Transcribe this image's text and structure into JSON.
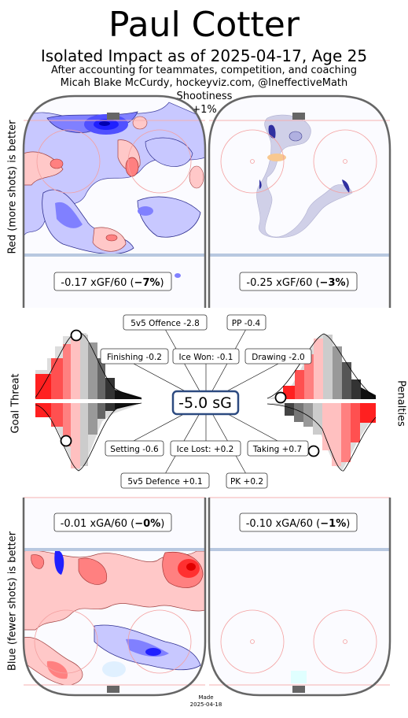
{
  "header": {
    "title": "Paul Cotter",
    "subtitle": "Isolated Impact as of 2025-04-17, Age 25",
    "credit_line1": "After accounting for teammates, competition, and coaching",
    "credit_line2": "Micah Blake McCurdy, hockeyviz.com, @IneffectiveMath",
    "shootiness_label": "Shootiness",
    "shootiness_value": "+1%"
  },
  "side_labels": {
    "left_top": "Red (more shots) is better",
    "left_mid": "Goal Threat",
    "left_bottom": "Blue (fewer shots) is better",
    "right_mid": "Penalties"
  },
  "rink_labels": {
    "offence_5v5": {
      "value": "-0.17 xGF/60 (",
      "pct": "−7%",
      "close": ")"
    },
    "offence_pp": {
      "value": "-0.25 xGF/60 (",
      "pct": "−3%",
      "close": ")"
    },
    "defence_5v5": {
      "value": "-0.01 xGA/60 (",
      "pct": "−0%",
      "close": ")"
    },
    "defence_pk": {
      "value": "-0.10 xGA/60 (",
      "pct": "−1%",
      "close": ")"
    }
  },
  "total": "-5.0 sG",
  "components": {
    "offence_5v5": "5v5 Offence -2.8",
    "pp": "PP -0.4",
    "finishing": "Finishing -0.2",
    "ice_won": "Ice Won: -0.1",
    "drawing": "Drawing -2.0",
    "setting": "Setting -0.6",
    "ice_lost": "Ice Lost: +0.2",
    "taking": "Taking +0.7",
    "defence_5v5": "5v5 Defence +0.1",
    "pk": "PK +0.2"
  },
  "footer": {
    "made_label": "Made",
    "made_date": "2025-04-18"
  },
  "colors": {
    "red_strong": "#ff1a1a",
    "red_mid": "#ff8080",
    "red_light": "#ffc8c8",
    "blue_strong": "#2020ff",
    "blue_mid": "#8080ff",
    "blue_light": "#c8c8ff",
    "grey_dark": "#222222",
    "grey_mid": "#777777",
    "grey_light": "#cccccc",
    "total_border": "#2c4a80",
    "board": "#666666"
  },
  "chart_data": {
    "type": "distribution",
    "title": "Paul Cotter",
    "total_sG": -5.0,
    "shootiness_pct": 1,
    "components": [
      {
        "name": "5v5 Offence",
        "value": -2.8
      },
      {
        "name": "PP",
        "value": -0.4
      },
      {
        "name": "Finishing",
        "value": -0.2
      },
      {
        "name": "Ice Won",
        "value": -0.1
      },
      {
        "name": "Drawing",
        "value": -2.0
      },
      {
        "name": "Setting",
        "value": -0.6
      },
      {
        "name": "Ice Lost",
        "value": 0.2
      },
      {
        "name": "Taking",
        "value": 0.7
      },
      {
        "name": "5v5 Defence",
        "value": 0.1
      },
      {
        "name": "PK",
        "value": 0.2
      }
    ],
    "rink_impacts": [
      {
        "name": "5v5 offence",
        "xG_per60": -0.17,
        "pct": -7
      },
      {
        "name": "PP offence",
        "xG_per60": -0.25,
        "pct": -3
      },
      {
        "name": "5v5 defence",
        "xG_per60": -0.01,
        "pct": 0
      },
      {
        "name": "PK defence",
        "xG_per60": -0.1,
        "pct": -1
      }
    ]
  }
}
